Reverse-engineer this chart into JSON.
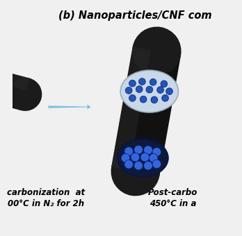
{
  "title": "(b) Nanoparticles/CNF com",
  "title_fontsize": 10.5,
  "title_fontweight": "bold",
  "background_color": "#f0f0f0",
  "arrow_color": "#7bbfdf",
  "fiber_body_color": "#111111",
  "fiber_body_color2": "#1c1c1c",
  "fiber_highlight_color": "#2e2e2e",
  "ellipse_face_color_top": "#c8d8e8",
  "ellipse_face_color_bot": "#2244aa",
  "ellipse_edge_color": "#9aaabb",
  "dot_color_top": "#2255bb",
  "dot_color_bot": "#1133aa",
  "label1": "carbonization  at",
  "label1b": "00°C in N₂ for 2h",
  "label2": "Post-carbo",
  "label2b": "450°C in a",
  "label_fontsize": 8.5,
  "label_fontweight": "bold"
}
